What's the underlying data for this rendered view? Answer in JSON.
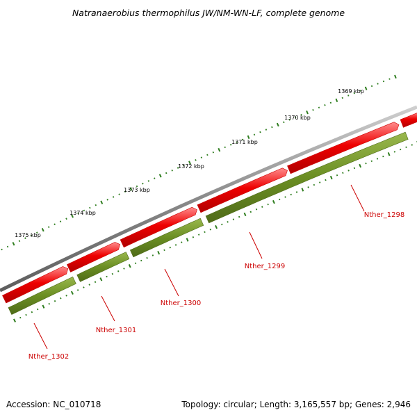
{
  "title": "Natranaerobius thermophilus JW/NM-WN-LF, complete genome",
  "footer": {
    "accession": "Accession: NC_010718",
    "summary": "Topology: circular; Length: 3,165,557 bp; Genes: 2,946"
  },
  "scale_labels": [
    "1369 kbp",
    "1370 kbp",
    "1371 kbp",
    "1372 kbp",
    "1373 kbp",
    "1374 kbp",
    "1375 kbp"
  ],
  "gene_labels": [
    "Nther_1298",
    "Nther_1299",
    "Nther_1300",
    "Nther_1301",
    "Nther_1302"
  ],
  "colors": {
    "backbone": "#8a8a8a",
    "forward_feature": "#ee0000",
    "gene_track": "#6b8e23",
    "ticks": "#2e7d1e",
    "gene_label": "#cc0000"
  },
  "icons": {
    "forward_feature": "arrow-right-block",
    "gene_track": "bar-block"
  }
}
